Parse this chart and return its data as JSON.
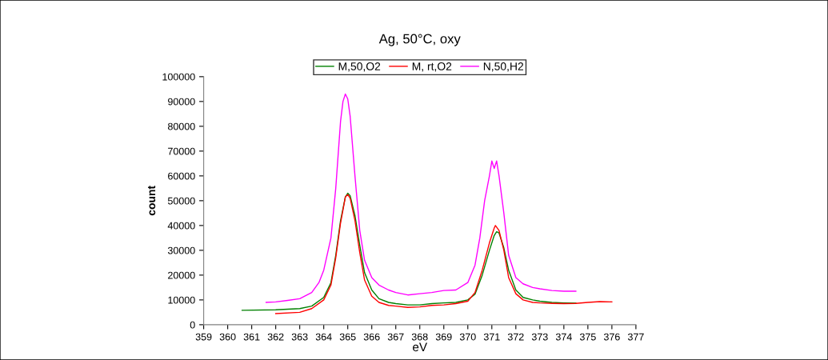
{
  "chart_data": {
    "type": "line",
    "title": "Ag, 50°C, oxy",
    "xlabel": "eV",
    "ylabel": "count",
    "xlim": [
      359,
      377
    ],
    "xticks": [
      359,
      360,
      361,
      362,
      363,
      364,
      365,
      366,
      367,
      368,
      369,
      370,
      371,
      372,
      373,
      374,
      375,
      376,
      377
    ],
    "ylim": [
      0,
      100000
    ],
    "yticks": [
      0,
      10000,
      20000,
      30000,
      40000,
      50000,
      60000,
      70000,
      80000,
      90000,
      100000
    ],
    "grid": false,
    "legend": "top",
    "marker": "none",
    "line_style": "solid",
    "series": [
      {
        "name": "M,50,O2",
        "color": "#008000",
        "x": [
          360.6,
          362,
          363,
          363.5,
          364,
          364.3,
          364.5,
          364.7,
          364.9,
          365.0,
          365.1,
          365.3,
          365.5,
          365.7,
          366,
          366.3,
          366.7,
          367,
          367.5,
          368,
          368.5,
          369,
          369.5,
          370,
          370.3,
          370.6,
          370.9,
          371.1,
          371.2,
          371.3,
          371.5,
          371.7,
          372,
          372.3,
          372.7,
          373,
          373.5,
          374,
          374.5
        ],
        "values": [
          5800,
          6000,
          6500,
          7500,
          11000,
          17000,
          28000,
          42000,
          51500,
          53000,
          52000,
          44000,
          32000,
          21000,
          14000,
          10500,
          9000,
          8500,
          8000,
          8000,
          8500,
          8800,
          9000,
          10000,
          12300,
          20000,
          30000,
          36000,
          37500,
          37000,
          31000,
          22000,
          14000,
          11000,
          10000,
          9500,
          9000,
          8800,
          8700
        ]
      },
      {
        "name": "M, rt,O2",
        "color": "#ff0000",
        "x": [
          362,
          363,
          363.5,
          364,
          364.3,
          364.5,
          364.7,
          364.9,
          365.0,
          365.1,
          365.3,
          365.5,
          365.7,
          366,
          366.3,
          366.7,
          367,
          367.5,
          368,
          368.5,
          369,
          369.5,
          370,
          370.3,
          370.6,
          370.9,
          371.1,
          371.15,
          371.3,
          371.5,
          371.7,
          372,
          372.3,
          372.7,
          373,
          373.5,
          374,
          374.5,
          375,
          375.5,
          376
        ],
        "values": [
          4500,
          5000,
          6500,
          10000,
          16000,
          27000,
          41000,
          51500,
          52500,
          51000,
          42000,
          29000,
          18000,
          11500,
          9000,
          7800,
          7500,
          7000,
          7200,
          7800,
          8000,
          8500,
          9500,
          13000,
          22000,
          33000,
          39000,
          40000,
          38000,
          30000,
          19000,
          12500,
          10000,
          9000,
          8800,
          8600,
          8500,
          8600,
          9000,
          9300,
          9200
        ]
      },
      {
        "name": "N,50,H2",
        "color": "#ff00ff",
        "x": [
          361.6,
          362,
          362.5,
          363,
          363.5,
          363.8,
          364,
          364.3,
          364.5,
          364.7,
          364.8,
          364.9,
          365.0,
          365.1,
          365.3,
          365.5,
          365.7,
          366,
          366.3,
          366.7,
          367,
          367.5,
          368,
          368.5,
          369,
          369.5,
          370,
          370.3,
          370.5,
          370.7,
          370.9,
          371.0,
          371.1,
          371.2,
          371.3,
          371.5,
          371.7,
          372,
          372.3,
          372.7,
          373,
          373.5,
          374,
          374.5
        ],
        "values": [
          9000,
          9200,
          9800,
          10500,
          13000,
          17000,
          22000,
          35000,
          55000,
          82000,
          90000,
          93000,
          91000,
          84000,
          60000,
          38000,
          26000,
          19000,
          16000,
          14000,
          13000,
          12000,
          12500,
          13000,
          13800,
          14000,
          17000,
          24000,
          35000,
          50000,
          60000,
          66000,
          63000,
          66000,
          60000,
          45000,
          28000,
          19000,
          16500,
          15000,
          14500,
          13800,
          13500,
          13500
        ]
      }
    ]
  }
}
